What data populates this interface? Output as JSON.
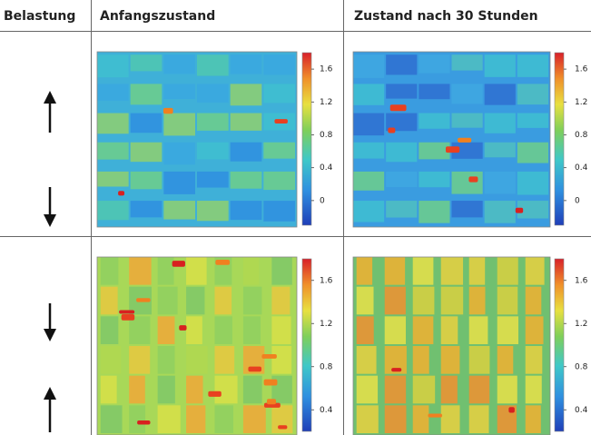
{
  "header": {
    "load": "Belastung",
    "initial": "Anfangszustand",
    "after": "Zustand nach 30 Stunden"
  },
  "rows": [
    {
      "colorbars": [
        {
          "range": [
            -0.3,
            1.8
          ],
          "ticks": [
            1.6,
            1.2,
            0.8,
            0.4,
            0
          ]
        },
        {
          "range": [
            -0.3,
            1.8
          ],
          "ticks": [
            1.6,
            1.2,
            0.8,
            0.4,
            0
          ]
        }
      ]
    },
    {
      "colorbars": [
        {
          "range": [
            0.2,
            1.8
          ],
          "ticks": [
            1.6,
            1.2,
            0.8,
            0.4
          ]
        },
        {
          "range": [
            0.2,
            1.8
          ],
          "ticks": [
            1.6,
            1.2,
            0.8,
            0.4
          ]
        }
      ]
    }
  ]
}
